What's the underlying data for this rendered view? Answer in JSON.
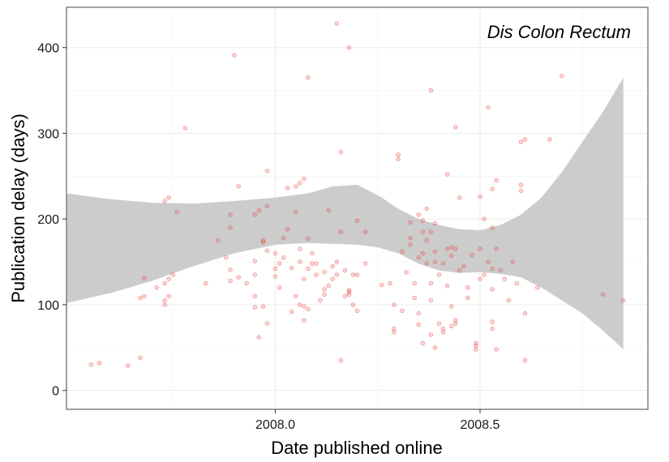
{
  "chart_data": {
    "type": "scatter",
    "title": "",
    "annotation": "Dis Colon Rectum",
    "xlabel": "Date published online",
    "ylabel": "Publication delay (days)",
    "xlim": [
      2007.49,
      2008.91
    ],
    "ylim": [
      -22,
      447
    ],
    "x_ticks": [
      2008.0,
      2008.5
    ],
    "x_tick_labels": [
      "2008.0",
      "2008.5"
    ],
    "y_ticks": [
      0,
      100,
      200,
      300,
      400
    ],
    "y_tick_labels": [
      "0",
      "100",
      "200",
      "300",
      "400"
    ],
    "grid": true,
    "point_color": "#e8413a",
    "ribbon_color": "#cccccc",
    "points": [
      [
        2007.55,
        30
      ],
      [
        2007.57,
        32
      ],
      [
        2007.64,
        29
      ],
      [
        2007.67,
        38
      ],
      [
        2007.67,
        108
      ],
      [
        2007.68,
        110
      ],
      [
        2007.68,
        131
      ],
      [
        2007.71,
        120
      ],
      [
        2007.73,
        100
      ],
      [
        2007.73,
        105
      ],
      [
        2007.74,
        110
      ],
      [
        2007.73,
        125
      ],
      [
        2007.74,
        130
      ],
      [
        2007.75,
        135
      ],
      [
        2007.73,
        221
      ],
      [
        2007.74,
        225
      ],
      [
        2007.76,
        208
      ],
      [
        2007.78,
        306
      ],
      [
        2007.83,
        125
      ],
      [
        2007.86,
        175
      ],
      [
        2007.88,
        155
      ],
      [
        2007.89,
        141
      ],
      [
        2007.89,
        128
      ],
      [
        2007.89,
        190
      ],
      [
        2007.89,
        205
      ],
      [
        2007.9,
        391
      ],
      [
        2007.91,
        238
      ],
      [
        2007.91,
        132
      ],
      [
        2007.93,
        125
      ],
      [
        2007.95,
        151
      ],
      [
        2007.95,
        135
      ],
      [
        2007.95,
        110
      ],
      [
        2007.95,
        97
      ],
      [
        2007.95,
        205
      ],
      [
        2007.96,
        62
      ],
      [
        2007.96,
        210
      ],
      [
        2007.97,
        98
      ],
      [
        2007.97,
        173
      ],
      [
        2007.97,
        175
      ],
      [
        2007.98,
        163
      ],
      [
        2007.98,
        256
      ],
      [
        2007.98,
        215
      ],
      [
        2008.0,
        142
      ],
      [
        2008.0,
        133
      ],
      [
        2008.0,
        160
      ],
      [
        2008.01,
        148
      ],
      [
        2008.01,
        120
      ],
      [
        2008.02,
        155
      ],
      [
        2008.02,
        178
      ],
      [
        2008.03,
        236
      ],
      [
        2008.03,
        188
      ],
      [
        2008.04,
        143
      ],
      [
        2008.04,
        92
      ],
      [
        2008.05,
        238
      ],
      [
        2008.05,
        208
      ],
      [
        2008.06,
        165
      ],
      [
        2008.06,
        150
      ],
      [
        2008.06,
        242
      ],
      [
        2008.06,
        100
      ],
      [
        2008.07,
        98
      ],
      [
        2008.07,
        130
      ],
      [
        2008.07,
        82
      ],
      [
        2008.07,
        247
      ],
      [
        2008.08,
        177
      ],
      [
        2008.08,
        142
      ],
      [
        2008.08,
        95
      ],
      [
        2008.08,
        365
      ],
      [
        2008.09,
        148
      ],
      [
        2008.09,
        160
      ],
      [
        2008.1,
        148
      ],
      [
        2008.1,
        135
      ],
      [
        2008.11,
        105
      ],
      [
        2008.12,
        118
      ],
      [
        2008.12,
        138
      ],
      [
        2008.13,
        122
      ],
      [
        2008.13,
        210
      ],
      [
        2008.14,
        145
      ],
      [
        2008.14,
        130
      ],
      [
        2008.15,
        135
      ],
      [
        2008.15,
        150
      ],
      [
        2008.15,
        428
      ],
      [
        2008.16,
        278
      ],
      [
        2008.16,
        185
      ],
      [
        2008.17,
        140
      ],
      [
        2008.17,
        110
      ],
      [
        2008.18,
        117
      ],
      [
        2008.18,
        112
      ],
      [
        2008.18,
        115
      ],
      [
        2008.18,
        400
      ],
      [
        2008.19,
        100
      ],
      [
        2008.19,
        135
      ],
      [
        2008.2,
        198
      ],
      [
        2008.2,
        93
      ],
      [
        2008.22,
        185
      ],
      [
        2008.28,
        125
      ],
      [
        2008.29,
        100
      ],
      [
        2008.29,
        72
      ],
      [
        2008.29,
        68
      ],
      [
        2008.3,
        270
      ],
      [
        2008.3,
        275
      ],
      [
        2008.31,
        93
      ],
      [
        2008.31,
        162
      ],
      [
        2008.33,
        196
      ],
      [
        2008.33,
        178
      ],
      [
        2008.33,
        170
      ],
      [
        2008.34,
        125
      ],
      [
        2008.34,
        108
      ],
      [
        2008.35,
        205
      ],
      [
        2008.35,
        155
      ],
      [
        2008.35,
        77
      ],
      [
        2008.35,
        90
      ],
      [
        2008.36,
        55
      ],
      [
        2008.36,
        160
      ],
      [
        2008.36,
        185
      ],
      [
        2008.36,
        198
      ],
      [
        2008.37,
        175
      ],
      [
        2008.37,
        148
      ],
      [
        2008.37,
        212
      ],
      [
        2008.38,
        105
      ],
      [
        2008.38,
        125
      ],
      [
        2008.38,
        185
      ],
      [
        2008.38,
        350
      ],
      [
        2008.38,
        65
      ],
      [
        2008.39,
        195
      ],
      [
        2008.39,
        162
      ],
      [
        2008.39,
        150
      ],
      [
        2008.39,
        50
      ],
      [
        2008.4,
        78
      ],
      [
        2008.4,
        135
      ],
      [
        2008.41,
        68
      ],
      [
        2008.41,
        72
      ],
      [
        2008.41,
        148
      ],
      [
        2008.42,
        122
      ],
      [
        2008.42,
        252
      ],
      [
        2008.42,
        165
      ],
      [
        2008.43,
        157
      ],
      [
        2008.43,
        167
      ],
      [
        2008.43,
        98
      ],
      [
        2008.43,
        75
      ],
      [
        2008.44,
        78
      ],
      [
        2008.44,
        165
      ],
      [
        2008.44,
        307
      ],
      [
        2008.44,
        82
      ],
      [
        2008.45,
        225
      ],
      [
        2008.45,
        140
      ],
      [
        2008.46,
        145
      ],
      [
        2008.47,
        120
      ],
      [
        2008.48,
        158
      ],
      [
        2008.49,
        52
      ],
      [
        2008.49,
        48
      ],
      [
        2008.49,
        55
      ],
      [
        2008.5,
        226
      ],
      [
        2008.5,
        165
      ],
      [
        2008.5,
        130
      ],
      [
        2008.51,
        200
      ],
      [
        2008.51,
        135
      ],
      [
        2008.52,
        330
      ],
      [
        2008.52,
        150
      ],
      [
        2008.53,
        190
      ],
      [
        2008.53,
        142
      ],
      [
        2008.53,
        118
      ],
      [
        2008.53,
        80
      ],
      [
        2008.53,
        72
      ],
      [
        2008.53,
        235
      ],
      [
        2008.54,
        245
      ],
      [
        2008.54,
        165
      ],
      [
        2008.54,
        48
      ],
      [
        2008.55,
        140
      ],
      [
        2008.56,
        130
      ],
      [
        2008.58,
        150
      ],
      [
        2008.59,
        125
      ],
      [
        2008.6,
        290
      ],
      [
        2008.6,
        240
      ],
      [
        2008.6,
        233
      ],
      [
        2008.61,
        293
      ],
      [
        2008.61,
        90
      ],
      [
        2008.61,
        35
      ],
      [
        2008.64,
        120
      ],
      [
        2008.67,
        293
      ],
      [
        2008.7,
        367
      ],
      [
        2008.8,
        112
      ],
      [
        2008.85,
        105
      ],
      [
        2008.2,
        135
      ],
      [
        2008.26,
        123
      ],
      [
        2007.98,
        78
      ],
      [
        2008.05,
        110
      ],
      [
        2008.12,
        112
      ],
      [
        2008.22,
        148
      ],
      [
        2008.32,
        138
      ],
      [
        2008.47,
        108
      ],
      [
        2008.57,
        105
      ],
      [
        2008.16,
        35
      ]
    ],
    "ribbon_upper": [
      [
        2007.49,
        230
      ],
      [
        2007.6,
        223
      ],
      [
        2007.7,
        219
      ],
      [
        2007.8,
        218
      ],
      [
        2007.9,
        221
      ],
      [
        2008.0,
        225
      ],
      [
        2008.08,
        230
      ],
      [
        2008.14,
        238
      ],
      [
        2008.2,
        240
      ],
      [
        2008.26,
        225
      ],
      [
        2008.3,
        212
      ],
      [
        2008.35,
        200
      ],
      [
        2008.4,
        193
      ],
      [
        2008.45,
        188
      ],
      [
        2008.5,
        187
      ],
      [
        2008.55,
        193
      ],
      [
        2008.6,
        205
      ],
      [
        2008.65,
        225
      ],
      [
        2008.7,
        255
      ],
      [
        2008.75,
        290
      ],
      [
        2008.8,
        325
      ],
      [
        2008.85,
        365
      ]
    ],
    "ribbon_lower": [
      [
        2008.85,
        48
      ],
      [
        2008.8,
        70
      ],
      [
        2008.75,
        90
      ],
      [
        2008.7,
        105
      ],
      [
        2008.65,
        120
      ],
      [
        2008.6,
        132
      ],
      [
        2008.55,
        136
      ],
      [
        2008.5,
        138
      ],
      [
        2008.45,
        137
      ],
      [
        2008.4,
        140
      ],
      [
        2008.35,
        148
      ],
      [
        2008.3,
        160
      ],
      [
        2008.25,
        167
      ],
      [
        2008.2,
        170
      ],
      [
        2008.14,
        171
      ],
      [
        2008.08,
        172
      ],
      [
        2008.0,
        170
      ],
      [
        2007.9,
        160
      ],
      [
        2007.8,
        145
      ],
      [
        2007.7,
        128
      ],
      [
        2007.6,
        114
      ],
      [
        2007.49,
        102
      ]
    ]
  }
}
